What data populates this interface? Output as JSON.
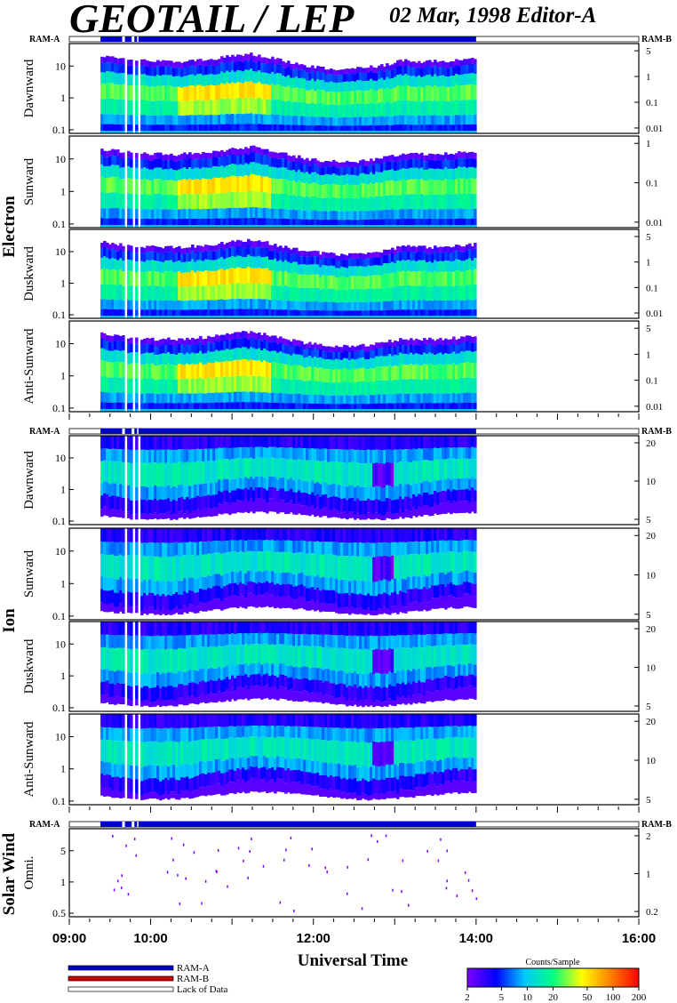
{
  "header": {
    "title": "GEOTAIL / LEP",
    "subtitle": "02 Mar, 1998   Editor-A"
  },
  "chart_data": {
    "type": "heatmap",
    "xlabel": "Universal Time",
    "x_range": [
      "09:00",
      "16:00"
    ],
    "x_ticks": [
      "09:00",
      "10:00",
      "12:00",
      "14:00",
      "16:00"
    ],
    "data_coverage": [
      "09:23",
      "14:00"
    ],
    "gaps": [
      [
        "09:39",
        "09:41"
      ],
      [
        "09:46",
        "09:48"
      ],
      [
        "09:50",
        "09:51"
      ]
    ],
    "ram_label_left": "RAM-A",
    "ram_label_right": "RAM-B",
    "groups": [
      {
        "name": "Electron",
        "panels": [
          {
            "label": "Dawnward",
            "y_ticks_left": [
              "10",
              "1",
              "0.1"
            ],
            "y_ticks_right": [
              "5",
              "1",
              "0.1",
              "0.01"
            ]
          },
          {
            "label": "Sunward",
            "y_ticks_left": [
              "10",
              "1",
              "0.1"
            ],
            "y_ticks_right": [
              "1",
              "0.1",
              "0.01"
            ]
          },
          {
            "label": "Duskward",
            "y_ticks_left": [
              "10",
              "1",
              "0.1"
            ],
            "y_ticks_right": [
              "5",
              "1",
              "0.1",
              "0.01"
            ]
          },
          {
            "label": "Anti-Sunward",
            "y_ticks_left": [
              "10",
              "1",
              "0.1"
            ],
            "y_ticks_right": [
              "5",
              "1",
              "0.1",
              "0.01"
            ]
          }
        ]
      },
      {
        "name": "Ion",
        "panels": [
          {
            "label": "Dawnward",
            "y_ticks_left": [
              "10",
              "1",
              "0.1"
            ],
            "y_ticks_right": [
              "20",
              "10",
              "5"
            ]
          },
          {
            "label": "Sunward",
            "y_ticks_left": [
              "10",
              "1",
              "0.1"
            ],
            "y_ticks_right": [
              "20",
              "10",
              "5"
            ]
          },
          {
            "label": "Duskward",
            "y_ticks_left": [
              "10",
              "1",
              "0.1"
            ],
            "y_ticks_right": [
              "20",
              "10",
              "5"
            ]
          },
          {
            "label": "Anti-Sunward",
            "y_ticks_left": [
              "10",
              "1",
              "0.1"
            ],
            "y_ticks_right": [
              "20",
              "10",
              "5"
            ]
          }
        ]
      },
      {
        "name": "Solar Wind",
        "panels": [
          {
            "label": "Omni.",
            "y_ticks_left": [
              "5",
              "1",
              "0.5"
            ],
            "y_ticks_right": [
              "2",
              "1",
              "0.2"
            ]
          }
        ]
      }
    ],
    "legend": [
      {
        "label": "RAM-A",
        "color": "#0000c8"
      },
      {
        "label": "RAM-B",
        "color": "#d00000"
      },
      {
        "label": "Lack of Data",
        "color": "#ffffff"
      }
    ],
    "colorbar": {
      "title": "Counts/Sample",
      "ticks": [
        "2",
        "5",
        "10",
        "20",
        "50",
        "100",
        "200"
      ],
      "colors": [
        "#8000ff",
        "#0000ff",
        "#00c8ff",
        "#00ff80",
        "#ffff00",
        "#ff8000",
        "#ff0000"
      ]
    }
  }
}
